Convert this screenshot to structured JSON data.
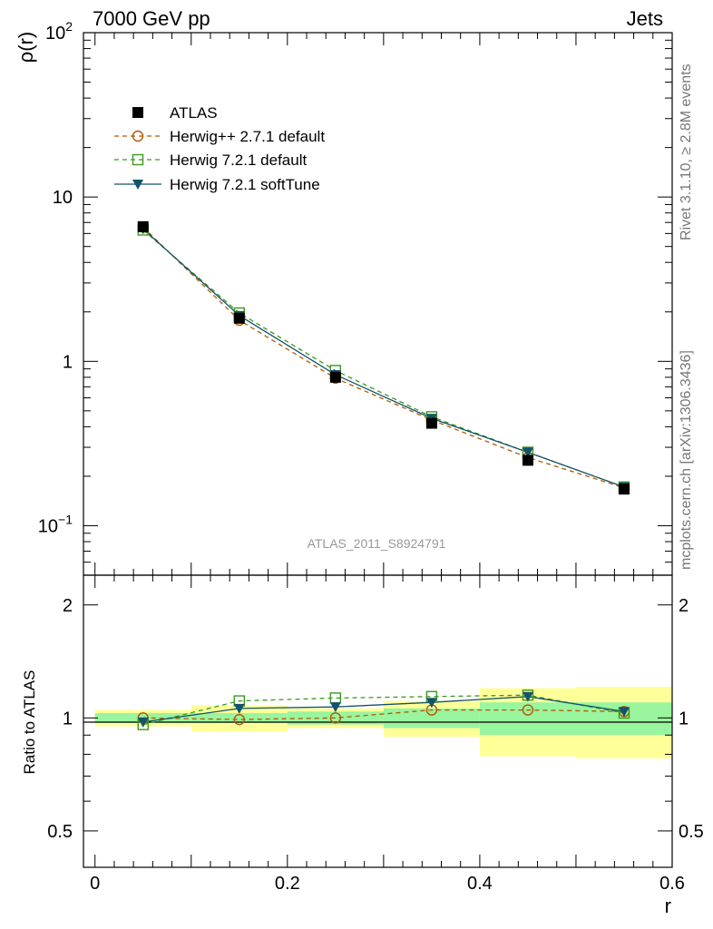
{
  "header": {
    "left": "7000 GeV pp",
    "right": "Jets"
  },
  "side_text": {
    "rivet": "Rivet 3.1.10, ≥ 2.8M events",
    "source": "mcplots.cern.ch [arXiv:1306.3436]"
  },
  "analysis_label": "ATLAS_2011_S8924791",
  "colors": {
    "atlas": "#000000",
    "herwigpp": "#b35900",
    "herwig_default": "#3a9a1e",
    "herwig_soft": "#14536b",
    "band_inner": "#99f59e",
    "band_outer": "#ffff99"
  },
  "chart_data": [
    {
      "type": "line",
      "panel": "main",
      "ylabel": "ρ(r)",
      "yscale": "log",
      "ylim": [
        0.05,
        100
      ],
      "xlim": [
        -0.012,
        0.6
      ],
      "yticks": [
        {
          "value": 0.1,
          "base": "10",
          "exp": "−1"
        },
        {
          "value": 1,
          "label": "1"
        },
        {
          "value": 10,
          "label": "10"
        },
        {
          "value": 100,
          "base": "10",
          "exp": "2"
        }
      ],
      "x": [
        0.05,
        0.15,
        0.25,
        0.35,
        0.45,
        0.55
      ],
      "series": [
        {
          "name": "ATLAS",
          "marker": "square-filled",
          "line": "none",
          "values": [
            6.6,
            1.83,
            0.8,
            0.42,
            0.25,
            0.167
          ]
        },
        {
          "name": "Herwig++ 2.7.1 default",
          "marker": "circle-open",
          "line": "dashed",
          "values": [
            6.55,
            1.78,
            0.79,
            0.44,
            0.26,
            0.17
          ]
        },
        {
          "name": "Herwig 7.2.1 default",
          "marker": "square-open",
          "line": "dashed",
          "values": [
            6.3,
            1.97,
            0.88,
            0.46,
            0.28,
            0.172
          ]
        },
        {
          "name": "Herwig 7.2.1 softTune",
          "marker": "triangle-down-filled",
          "line": "solid",
          "values": [
            6.4,
            1.9,
            0.83,
            0.45,
            0.28,
            0.172
          ]
        }
      ],
      "legend": "top-left"
    },
    {
      "type": "line",
      "panel": "ratio",
      "xlabel": "r",
      "ylabel": "Ratio to ATLAS",
      "yscale": "log",
      "ylim": [
        0.4,
        2.4
      ],
      "xlim": [
        -0.012,
        0.6
      ],
      "xticks": [
        {
          "value": 0,
          "label": "0"
        },
        {
          "value": 0.2,
          "label": "0.2"
        },
        {
          "value": 0.4,
          "label": "0.4"
        },
        {
          "value": 0.6,
          "label": "0.6"
        }
      ],
      "yticks": [
        {
          "value": 0.5,
          "label": "0.5"
        },
        {
          "value": 1,
          "label": "1"
        },
        {
          "value": 2,
          "label": "2"
        }
      ],
      "bins": [
        [
          0.0,
          0.1
        ],
        [
          0.1,
          0.2
        ],
        [
          0.2,
          0.3
        ],
        [
          0.3,
          0.4
        ],
        [
          0.4,
          0.5
        ],
        [
          0.5,
          0.6
        ]
      ],
      "band_inner": [
        [
          0.97,
          1.03
        ],
        [
          0.97,
          1.03
        ],
        [
          0.96,
          1.04
        ],
        [
          0.94,
          1.06
        ],
        [
          0.9,
          1.1
        ],
        [
          0.9,
          1.1
        ]
      ],
      "band_outer": [
        [
          0.95,
          1.05
        ],
        [
          0.92,
          1.08
        ],
        [
          0.94,
          1.06
        ],
        [
          0.89,
          1.11
        ],
        [
          0.79,
          1.2
        ],
        [
          0.78,
          1.21
        ]
      ],
      "x": [
        0.05,
        0.15,
        0.25,
        0.35,
        0.45,
        0.55
      ],
      "series": [
        {
          "name": "Herwig++ 2.7.1 default",
          "values": [
            1.0,
            0.99,
            1.0,
            1.05,
            1.05,
            1.04
          ]
        },
        {
          "name": "Herwig 7.2.1 default",
          "values": [
            0.96,
            1.11,
            1.13,
            1.14,
            1.15,
            1.03
          ]
        },
        {
          "name": "Herwig 7.2.1 softTune",
          "values": [
            0.975,
            1.06,
            1.07,
            1.1,
            1.14,
            1.04
          ]
        }
      ]
    }
  ]
}
